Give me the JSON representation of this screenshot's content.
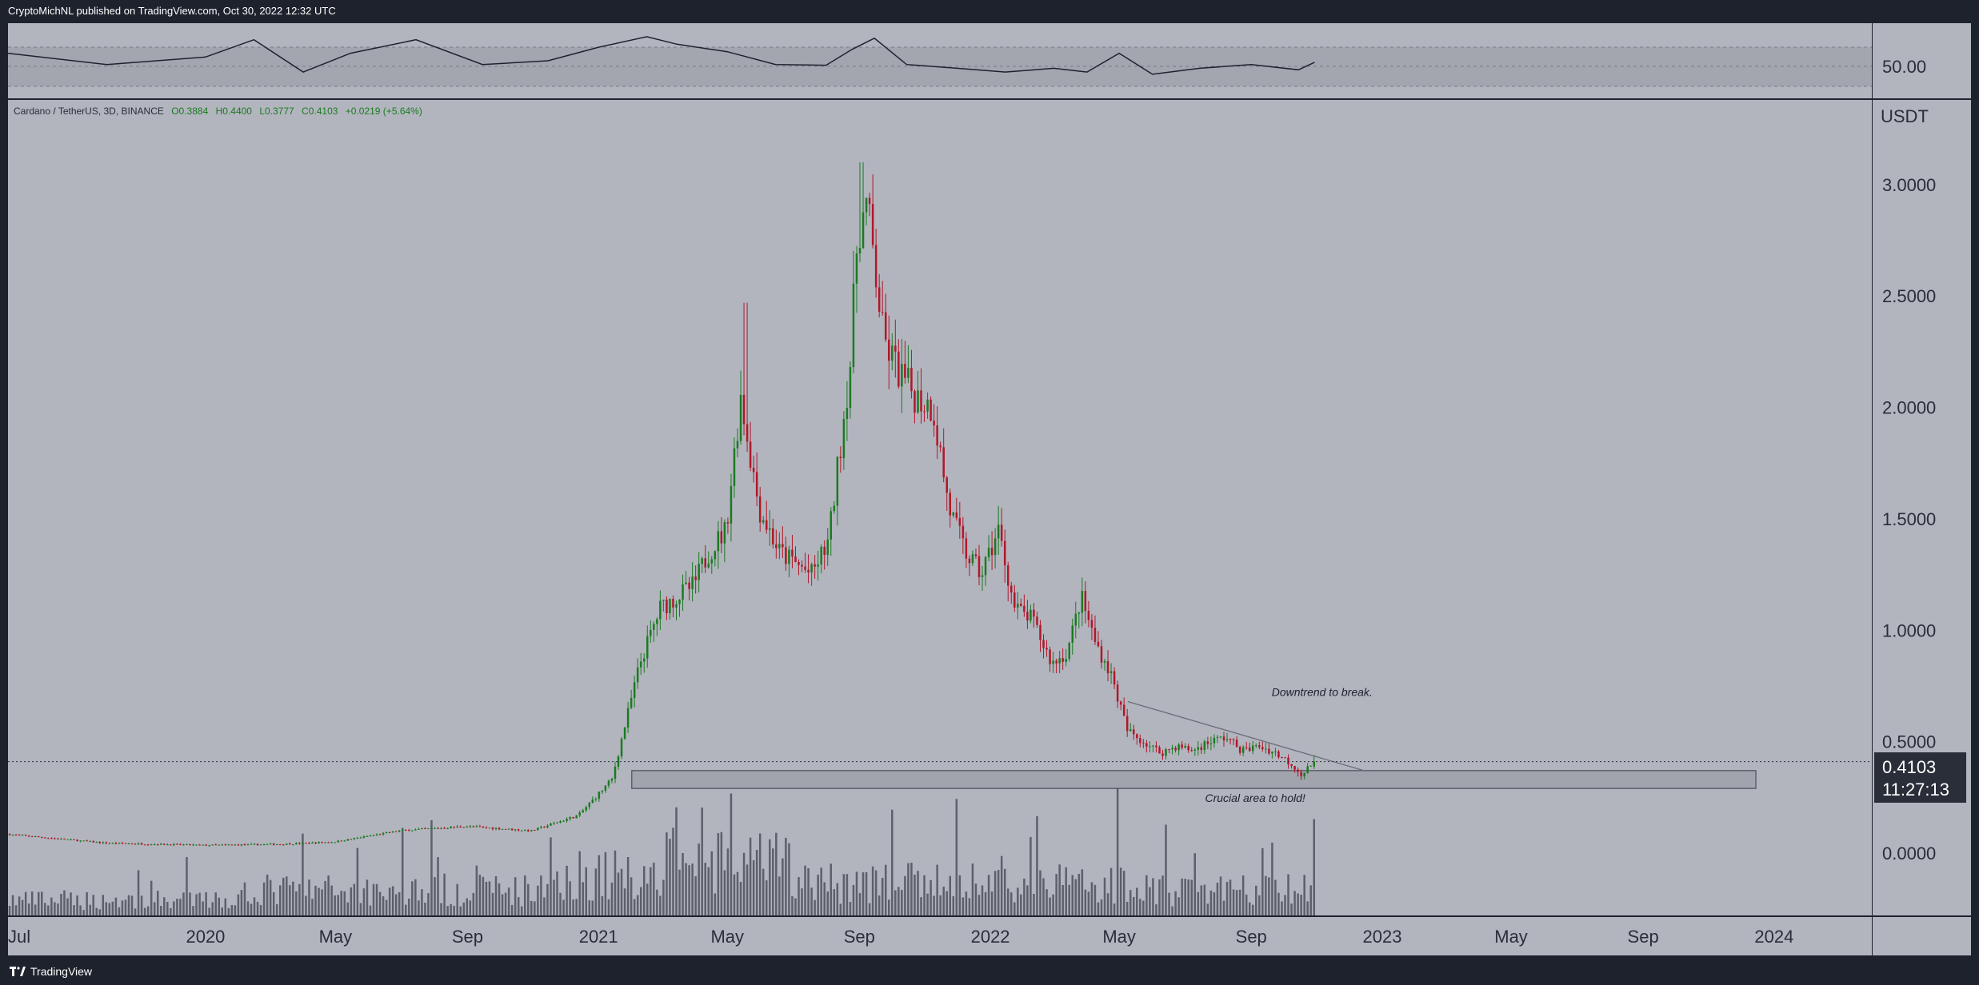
{
  "header": {
    "publish_line": "CryptoMichNL published on TradingView.com, Oct 30, 2022 12:32 UTC"
  },
  "footer": {
    "brand": "TradingView"
  },
  "symbol_line": {
    "name": "Cardano / TetherUS, 3D, BINANCE",
    "open": "O0.3884",
    "high": "H0.4400",
    "low": "L0.3777",
    "close": "C0.4103",
    "change": "+0.0219 (+5.64%)"
  },
  "price_axis": {
    "unit": "USDT",
    "ticks": [
      "3.0000",
      "2.5000",
      "2.0000",
      "1.5000",
      "1.0000",
      "0.5000",
      "0.0000"
    ],
    "last_price": "0.4103",
    "countdown": "11:27:13"
  },
  "rsi_pane": {
    "label": "50.00"
  },
  "time_axis": {
    "labels": [
      "Jul",
      "2020",
      "May",
      "Sep",
      "2021",
      "May",
      "Sep",
      "2022",
      "May",
      "Sep",
      "2023",
      "May",
      "Sep",
      "2024"
    ]
  },
  "annotations": {
    "downtrend": "Downtrend to break.",
    "crucial": "Crucial area to hold!"
  },
  "colors": {
    "background": "#b2b5be",
    "frame": "#1e222d",
    "up_candle": "#1b7a22",
    "down_candle": "#b0172a",
    "volume": "#5d606b",
    "zone_fill": "#9ea1aa"
  },
  "chart_data": {
    "type": "candlestick",
    "series_name": "ADA/USDT 3D",
    "y_unit": "USDT",
    "ylim": [
      -0.28,
      3.38
    ],
    "grid": false,
    "price_path_x": [
      "2019-07-01",
      "2019-10-01",
      "2020-01-01",
      "2020-03-15",
      "2020-05-01",
      "2020-07-01",
      "2020-09-01",
      "2020-11-01",
      "2020-12-15",
      "2021-01-15",
      "2021-02-10",
      "2021-03-01",
      "2021-04-01",
      "2021-04-15",
      "2021-05-01",
      "2021-05-15",
      "2021-06-01",
      "2021-06-20",
      "2021-07-20",
      "2021-08-05",
      "2021-08-25",
      "2021-09-01",
      "2021-09-10",
      "2021-09-25",
      "2021-10-10",
      "2021-10-25",
      "2021-11-10",
      "2021-11-25",
      "2021-12-10",
      "2021-12-25",
      "2022-01-10",
      "2022-01-25",
      "2022-02-10",
      "2022-03-01",
      "2022-03-15",
      "2022-03-28",
      "2022-04-10",
      "2022-04-25",
      "2022-05-10",
      "2022-05-25",
      "2022-06-10",
      "2022-06-25",
      "2022-07-10",
      "2022-07-25",
      "2022-08-10",
      "2022-08-25",
      "2022-09-10",
      "2022-09-25",
      "2022-10-10",
      "2022-10-20",
      "2022-10-30"
    ],
    "price_path_y": [
      0.085,
      0.045,
      0.035,
      0.04,
      0.05,
      0.1,
      0.12,
      0.1,
      0.17,
      0.33,
      0.85,
      1.1,
      1.2,
      1.35,
      1.45,
      2.05,
      1.55,
      1.35,
      1.25,
      1.4,
      2.2,
      2.8,
      2.9,
      2.3,
      2.15,
      2.05,
      2.0,
      1.55,
      1.35,
      1.25,
      1.45,
      1.1,
      1.05,
      0.85,
      0.9,
      1.15,
      0.95,
      0.8,
      0.55,
      0.5,
      0.45,
      0.48,
      0.46,
      0.5,
      0.52,
      0.46,
      0.48,
      0.45,
      0.4,
      0.35,
      0.41
    ],
    "last_candle": {
      "open": 0.3884,
      "high": 0.44,
      "low": 0.3777,
      "close": 0.4103
    },
    "notable_highs": [
      {
        "x": "2021-05-16",
        "y": 2.47
      },
      {
        "x": "2021-09-02",
        "y": 3.1
      }
    ],
    "support_zone": {
      "x_start": "2021-02-01",
      "x_end": "2023-12-15",
      "y_low": 0.29,
      "y_high": 0.37
    },
    "trendline": {
      "x1": "2022-05-09",
      "y1": 0.68,
      "x2": "2022-12-15",
      "y2": 0.37
    },
    "rsi": {
      "midline": 50,
      "band": [
        30,
        70
      ],
      "x": [
        "2019-07-01",
        "2019-10-01",
        "2020-01-01",
        "2020-02-15",
        "2020-04-01",
        "2020-05-15",
        "2020-07-15",
        "2020-09-15",
        "2020-11-15",
        "2021-01-01",
        "2021-02-15",
        "2021-03-15",
        "2021-05-01",
        "2021-06-15",
        "2021-08-01",
        "2021-08-25",
        "2021-09-15",
        "2021-10-15",
        "2021-12-01",
        "2022-01-15",
        "2022-03-01",
        "2022-04-01",
        "2022-05-01",
        "2022-06-01",
        "2022-07-15",
        "2022-09-01",
        "2022-10-15",
        "2022-10-30"
      ],
      "y": [
        60,
        45,
        55,
        78,
        35,
        60,
        78,
        45,
        50,
        68,
        82,
        72,
        62,
        45,
        44,
        65,
        80,
        45,
        40,
        35,
        40,
        35,
        60,
        32,
        40,
        45,
        38,
        48
      ]
    },
    "time_ticks": [
      {
        "label": "Jul",
        "x": "2019-07-01"
      },
      {
        "label": "2020",
        "x": "2020-01-01"
      },
      {
        "label": "May",
        "x": "2020-05-01"
      },
      {
        "label": "Sep",
        "x": "2020-09-01"
      },
      {
        "label": "2021",
        "x": "2021-01-01"
      },
      {
        "label": "May",
        "x": "2021-05-01"
      },
      {
        "label": "Sep",
        "x": "2021-09-01"
      },
      {
        "label": "2022",
        "x": "2022-01-01"
      },
      {
        "label": "May",
        "x": "2022-05-01"
      },
      {
        "label": "Sep",
        "x": "2022-09-01"
      },
      {
        "label": "2023",
        "x": "2023-01-01"
      },
      {
        "label": "May",
        "x": "2023-05-01"
      },
      {
        "label": "Sep",
        "x": "2023-09-01"
      },
      {
        "label": "2024",
        "x": "2024-01-01"
      }
    ]
  }
}
